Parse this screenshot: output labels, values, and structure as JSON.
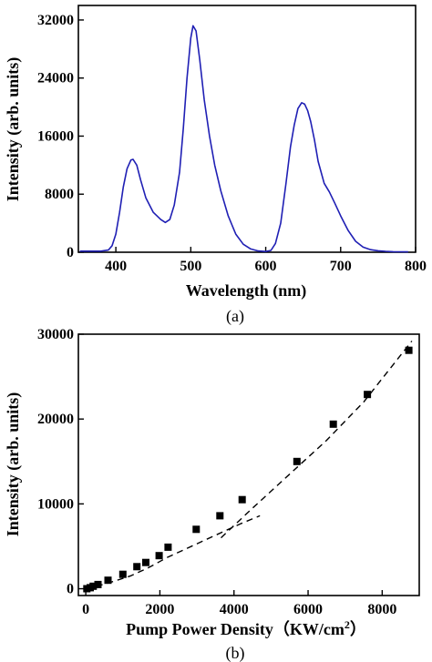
{
  "chart_data": [
    {
      "type": "line",
      "panel_label": "(a)",
      "xlabel": "Wavelength (nm)",
      "ylabel": "Intensity (arb. units)",
      "xlim": [
        350,
        800
      ],
      "ylim": [
        0,
        34000
      ],
      "xticks": [
        400,
        500,
        600,
        700,
        800
      ],
      "yticks": [
        0,
        8000,
        16000,
        24000,
        32000
      ],
      "grid": false,
      "series": [
        {
          "color": "#1f1fb4",
          "x": [
            352,
            365,
            380,
            390,
            395,
            400,
            405,
            410,
            415,
            420,
            423,
            428,
            433,
            440,
            450,
            460,
            466,
            472,
            478,
            485,
            490,
            495,
            500,
            503,
            507,
            512,
            518,
            525,
            532,
            540,
            550,
            560,
            570,
            580,
            590,
            600,
            607,
            613,
            620,
            627,
            633,
            638,
            643,
            648,
            652,
            656,
            660,
            665,
            670,
            678,
            685,
            692,
            700,
            710,
            720,
            730,
            740,
            750,
            760,
            770,
            780,
            790
          ],
          "y": [
            150,
            150,
            150,
            300,
            900,
            2500,
            5500,
            9000,
            11500,
            12700,
            12800,
            12000,
            10000,
            7500,
            5500,
            4500,
            4100,
            4500,
            6500,
            11000,
            17000,
            24000,
            29500,
            31200,
            30500,
            26500,
            21000,
            16000,
            12000,
            8500,
            5000,
            2500,
            1100,
            450,
            180,
            100,
            250,
            1200,
            4000,
            9500,
            14500,
            17500,
            19800,
            20600,
            20400,
            19500,
            18000,
            15500,
            12500,
            9500,
            8300,
            6800,
            5000,
            3000,
            1500,
            700,
            350,
            200,
            120,
            80,
            60,
            50
          ]
        }
      ]
    },
    {
      "type": "scatter",
      "panel_label": "(b)",
      "xlabel_prefix": "Pump Power Density",
      "xlabel_unit": "（KW/cm",
      "xlabel_sup": "2",
      "xlabel_close": "）",
      "ylabel": "Intensity (arb. units)",
      "xlim": [
        -200,
        9000
      ],
      "ylim": [
        -800,
        30000
      ],
      "xticks": [
        0,
        2000,
        4000,
        6000,
        8000
      ],
      "yticks": [
        0,
        10000,
        20000,
        30000
      ],
      "grid": false,
      "series": [
        {
          "marker": "square",
          "color": "#000000",
          "x": [
            30,
            120,
            200,
            330,
            600,
            1000,
            1380,
            1620,
            1980,
            2220,
            2980,
            3620,
            4220,
            5700,
            6680,
            7600,
            8720
          ],
          "y": [
            0,
            120,
            300,
            500,
            1000,
            1700,
            2600,
            3100,
            3900,
            4900,
            7000,
            8600,
            10500,
            15000,
            19400,
            22900,
            28100
          ]
        }
      ],
      "fit_lines": [
        {
          "style": "dashed",
          "x": [
            0,
            300,
            700,
            1200,
            1700,
            2200,
            2700,
            3200,
            3700,
            4200,
            4700
          ],
          "y": [
            0,
            300,
            800,
            1500,
            2500,
            3700,
            4700,
            5700,
            6700,
            7700,
            8600
          ]
        },
        {
          "style": "dashed",
          "x": [
            3650,
            4500,
            5500,
            6500,
            7500,
            8800
          ],
          "y": [
            6000,
            9500,
            13500,
            17500,
            22000,
            29200
          ]
        }
      ]
    }
  ]
}
